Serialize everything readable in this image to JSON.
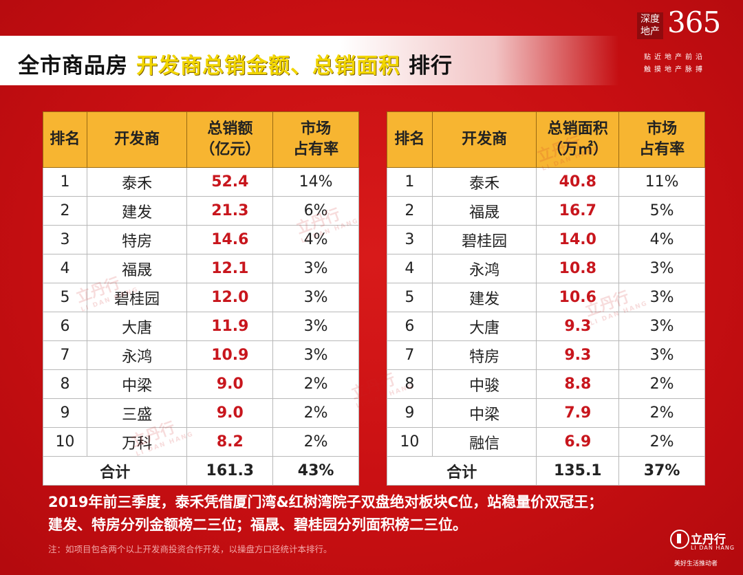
{
  "header": {
    "title_part1": "全市商品房",
    "title_part2": "开发商总销金额、总销面积",
    "title_part3": "排行"
  },
  "logo": {
    "box_line1": "深度",
    "box_line2": "地产",
    "number": "365",
    "tagline1": "贴近地产前沿",
    "tagline2": "触摸地产脉搏"
  },
  "table_amount": {
    "headers": [
      "排名",
      "开发商",
      "总销额\n（亿元）",
      "市场\n占有率"
    ],
    "rows": [
      {
        "rank": "1",
        "dev": "泰禾",
        "value": "52.4",
        "share": "14%"
      },
      {
        "rank": "2",
        "dev": "建发",
        "value": "21.3",
        "share": "6%"
      },
      {
        "rank": "3",
        "dev": "特房",
        "value": "14.6",
        "share": "4%"
      },
      {
        "rank": "4",
        "dev": "福晟",
        "value": "12.1",
        "share": "3%"
      },
      {
        "rank": "5",
        "dev": "碧桂园",
        "value": "12.0",
        "share": "3%"
      },
      {
        "rank": "6",
        "dev": "大唐",
        "value": "11.9",
        "share": "3%"
      },
      {
        "rank": "7",
        "dev": "永鸿",
        "value": "10.9",
        "share": "3%"
      },
      {
        "rank": "8",
        "dev": "中梁",
        "value": "9.0",
        "share": "2%"
      },
      {
        "rank": "9",
        "dev": "三盛",
        "value": "9.0",
        "share": "2%"
      },
      {
        "rank": "10",
        "dev": "万科",
        "value": "8.2",
        "share": "2%"
      }
    ],
    "total": {
      "label": "合计",
      "value": "161.3",
      "share": "43%"
    }
  },
  "table_area": {
    "headers": [
      "排名",
      "开发商",
      "总销面积\n（万㎡）",
      "市场\n占有率"
    ],
    "rows": [
      {
        "rank": "1",
        "dev": "泰禾",
        "value": "40.8",
        "share": "11%"
      },
      {
        "rank": "2",
        "dev": "福晟",
        "value": "16.7",
        "share": "5%"
      },
      {
        "rank": "3",
        "dev": "碧桂园",
        "value": "14.0",
        "share": "4%"
      },
      {
        "rank": "4",
        "dev": "永鸿",
        "value": "10.8",
        "share": "3%"
      },
      {
        "rank": "5",
        "dev": "建发",
        "value": "10.6",
        "share": "3%"
      },
      {
        "rank": "6",
        "dev": "大唐",
        "value": "9.3",
        "share": "3%"
      },
      {
        "rank": "7",
        "dev": "特房",
        "value": "9.3",
        "share": "3%"
      },
      {
        "rank": "8",
        "dev": "中骏",
        "value": "8.8",
        "share": "2%"
      },
      {
        "rank": "9",
        "dev": "中梁",
        "value": "7.9",
        "share": "2%"
      },
      {
        "rank": "10",
        "dev": "融信",
        "value": "6.9",
        "share": "2%"
      }
    ],
    "total": {
      "label": "合计",
      "value": "135.1",
      "share": "37%"
    }
  },
  "summary": {
    "line1": "2019年前三季度，泰禾凭借厦门湾&红树湾院子双盘绝对板块C位，站稳量价双冠王；",
    "line2": "建发、特房分列金额榜二三位；福晟、碧桂园分列面积榜二三位。",
    "note": "注：如项目包含两个以上开发商投资合作开发，以操盘方口径统计本排行。"
  },
  "brand": {
    "name": "立丹行",
    "en": "LI DAN HANG",
    "slogan": "美好生活推动者"
  },
  "watermark": {
    "cn": "立丹行",
    "en": "LI DAN HANG"
  },
  "colors": {
    "background": "#c80f12",
    "header_fill": "#f7b531",
    "value_text": "#c8161d",
    "title_highlight": "#f2d600"
  }
}
